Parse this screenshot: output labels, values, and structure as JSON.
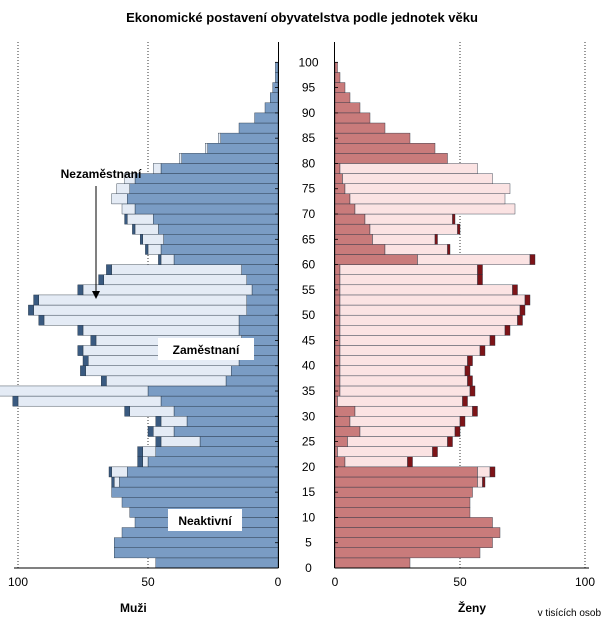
{
  "chart_data": {
    "type": "bar",
    "title": "Ekonomické postavení obyvatelstva podle jednotek věku",
    "unit": "v tisících osob",
    "x_ticks_left": [
      "100",
      "50",
      "0"
    ],
    "x_ticks_right": [
      "0",
      "50",
      "100"
    ],
    "age_ticks": [
      "0",
      "5",
      "10",
      "15",
      "20",
      "25",
      "30",
      "35",
      "40",
      "45",
      "50",
      "55",
      "60",
      "65",
      "70",
      "75",
      "80",
      "85",
      "90",
      "95",
      "100"
    ],
    "xlim": [
      0,
      100
    ],
    "ylim": [
      0,
      100
    ],
    "grid": "dotted vertical at 50 and 100",
    "age_step": 2,
    "categories_ages": [
      0,
      2,
      4,
      6,
      8,
      10,
      12,
      14,
      16,
      18,
      20,
      22,
      24,
      26,
      28,
      30,
      32,
      34,
      36,
      38,
      40,
      42,
      44,
      46,
      48,
      50,
      52,
      54,
      56,
      58,
      60,
      62,
      64,
      66,
      68,
      70,
      72,
      74,
      76,
      78,
      80,
      82,
      84,
      86,
      88,
      90,
      92,
      94,
      96,
      98,
      100
    ],
    "annotations": {
      "inactive": "Neaktivní",
      "employed": "Zaměstnaní",
      "unemployed": "Nezaměstnaní"
    },
    "panels": [
      {
        "name": "Muži",
        "series": [
          {
            "name": "Neaktivní",
            "color": "#7a9cc4",
            "values": [
              47,
              63,
              63,
              60,
              55,
              57,
              60,
              64,
              61,
              58,
              50,
              47,
              30,
              40,
              35,
              40,
              45,
              50,
              20,
              18,
              15,
              15,
              14,
              15,
              15,
              12,
              12,
              10,
              12,
              14,
              40,
              45,
              44,
              46,
              48,
              55,
              58,
              57,
              55,
              45,
              37,
              27,
              22,
              15,
              9,
              5,
              3,
              2,
              1,
              1,
              0
            ]
          },
          {
            "name": "Zaměstnaní",
            "color": "#e4ebf5",
            "values": [
              0,
              0,
              0,
              0,
              0,
              0,
              0,
              0,
              2,
              6,
              2,
              5,
              15,
              8,
              10,
              17,
              55,
              60,
              46,
              56,
              58,
              60,
              56,
              60,
              75,
              82,
              80,
              65,
              55,
              50,
              5,
              5,
              8,
              9,
              10,
              5,
              6,
              5,
              4,
              3,
              1,
              1,
              1,
              0,
              0,
              0,
              0,
              0,
              0,
              0,
              0
            ]
          },
          {
            "name": "Nezaměstnaní",
            "color": "#3a5a80",
            "values": [
              0,
              0,
              0,
              0,
              0,
              0,
              0,
              0,
              1,
              1,
              2,
              2,
              2,
              2,
              2,
              2,
              2,
              2,
              2,
              2,
              2,
              2,
              2,
              2,
              2,
              2,
              2,
              2,
              2,
              2,
              1,
              1,
              1,
              1,
              1,
              0,
              0,
              0,
              0,
              0,
              0,
              0,
              0,
              0,
              0,
              0,
              0,
              0,
              0,
              0,
              0
            ]
          }
        ]
      },
      {
        "name": "Ženy",
        "series": [
          {
            "name": "Neaktivní",
            "color": "#c97b7b",
            "values": [
              30,
              58,
              63,
              66,
              63,
              54,
              54,
              55,
              57,
              57,
              4,
              1,
              5,
              10,
              6,
              8,
              1,
              2,
              2,
              2,
              2,
              2,
              2,
              2,
              2,
              2,
              2,
              2,
              2,
              2,
              33,
              20,
              15,
              14,
              12,
              8,
              6,
              4,
              3,
              2,
              45,
              40,
              30,
              20,
              14,
              10,
              6,
              4,
              2,
              1,
              0
            ]
          },
          {
            "name": "Zaměstnaní",
            "color": "#fbe3e3",
            "values": [
              0,
              0,
              0,
              0,
              0,
              0,
              0,
              0,
              2,
              5,
              25,
              38,
              40,
              38,
              44,
              47,
              50,
              52,
              51,
              50,
              51,
              56,
              60,
              66,
              71,
              72,
              74,
              69,
              55,
              55,
              45,
              25,
              25,
              35,
              35,
              64,
              62,
              66,
              60,
              55,
              0,
              0,
              0,
              0,
              0,
              0,
              0,
              0,
              0,
              0,
              0
            ]
          },
          {
            "name": "Nezaměstnaní",
            "color": "#7d1418",
            "values": [
              0,
              0,
              0,
              0,
              0,
              0,
              0,
              0,
              1,
              2,
              2,
              2,
              2,
              2,
              2,
              2,
              2,
              2,
              2,
              2,
              2,
              2,
              2,
              2,
              2,
              2,
              2,
              2,
              2,
              2,
              2,
              1,
              1,
              1,
              1,
              0,
              0,
              0,
              0,
              0,
              0,
              0,
              0,
              0,
              0,
              0,
              0,
              0,
              0,
              0,
              0
            ]
          }
        ]
      }
    ]
  }
}
